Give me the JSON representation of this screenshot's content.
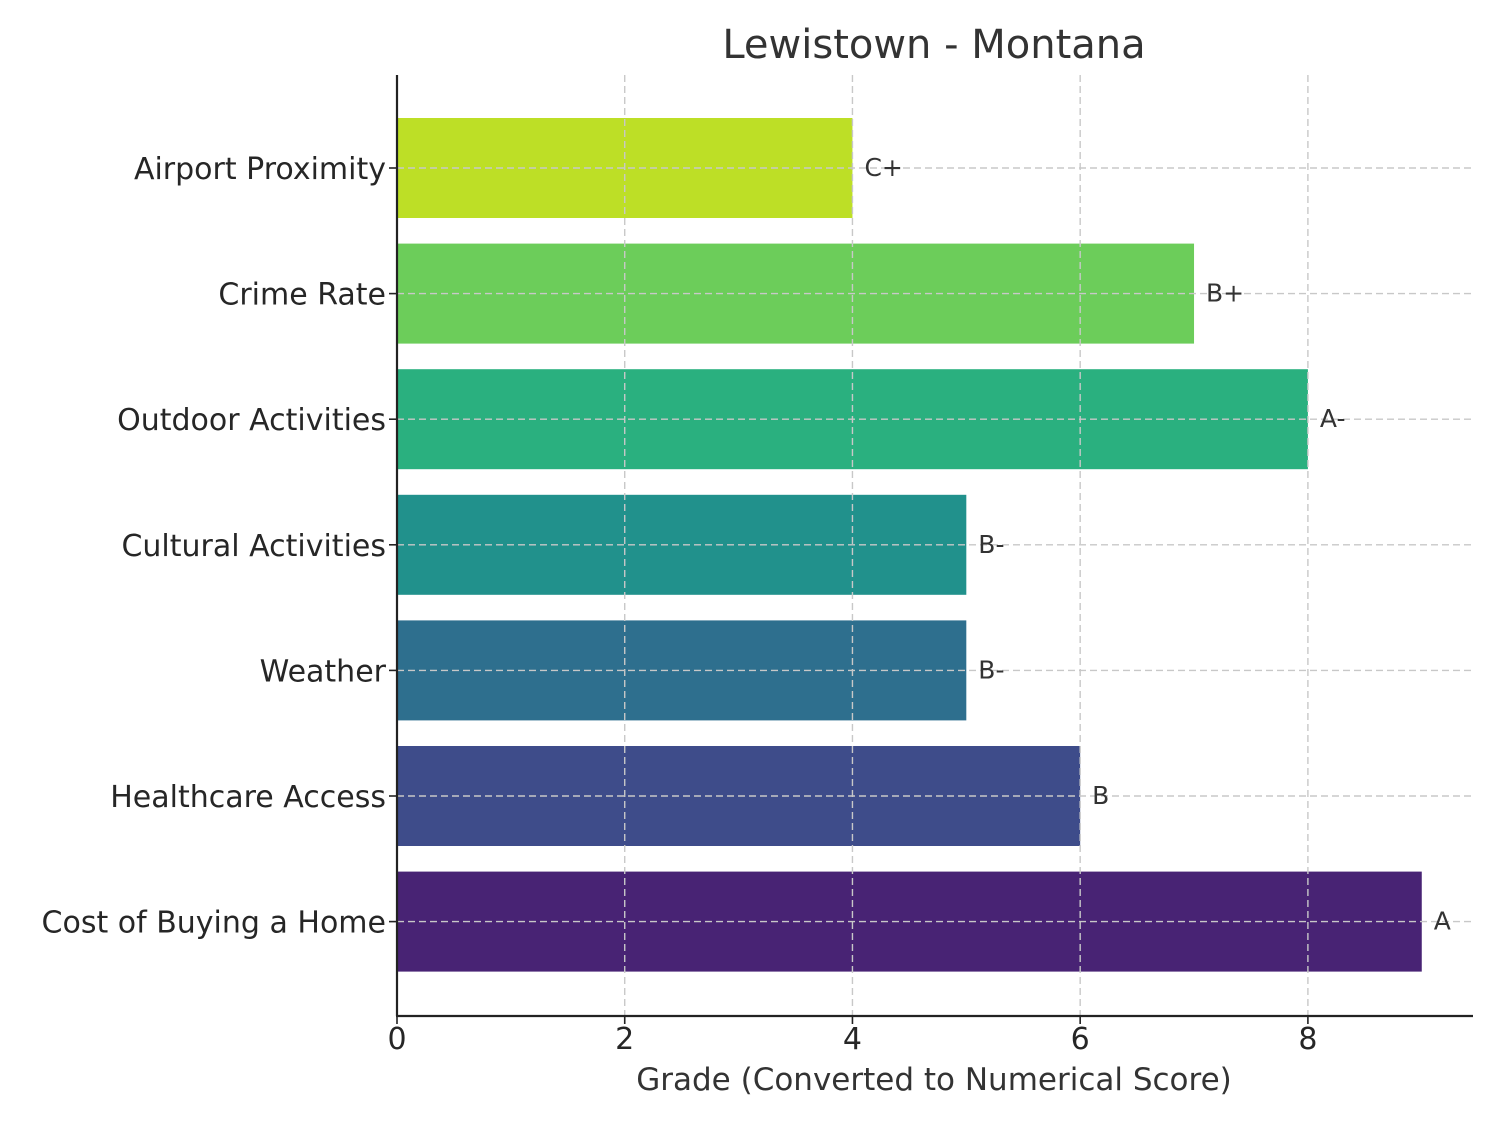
{
  "chart_data": {
    "type": "bar",
    "orientation": "horizontal",
    "title": "Lewistown - Montana",
    "xlabel": "Grade (Converted to Numerical Score)",
    "ylabel": "",
    "xlim": [
      0,
      9.45
    ],
    "xticks": [
      0,
      2,
      4,
      6,
      8
    ],
    "grid": true,
    "categories": [
      "Airport Proximity",
      "Crime Rate",
      "Outdoor Activities",
      "Cultural Activities",
      "Weather",
      "Healthcare Access",
      "Cost of Buying a Home"
    ],
    "values": [
      4,
      7,
      8,
      5,
      5,
      6,
      9
    ],
    "grades": [
      "C+",
      "B+",
      "A-",
      "B-",
      "B-",
      "B",
      "A"
    ],
    "colors": [
      "#bddf26",
      "#6ccd5a",
      "#2ab07f",
      "#21918c",
      "#2e6f8e",
      "#3e4c8a",
      "#482374"
    ]
  }
}
